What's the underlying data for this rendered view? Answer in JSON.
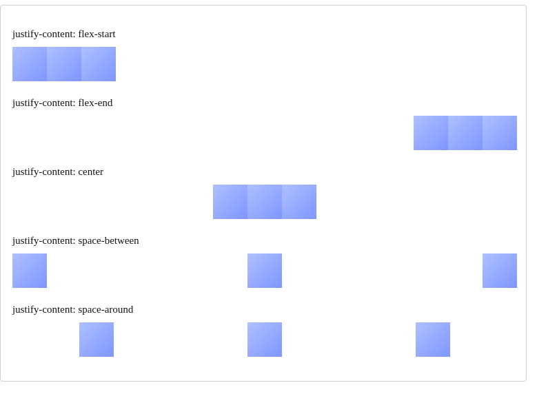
{
  "sections": [
    {
      "label": "justify-content: flex-start",
      "mode": "flex-start",
      "box_count": 3
    },
    {
      "label": "justify-content: flex-end",
      "mode": "flex-end",
      "box_count": 3
    },
    {
      "label": "justify-content: center",
      "mode": "center",
      "box_count": 3
    },
    {
      "label": "justify-content: space-between",
      "mode": "space-between",
      "box_count": 3
    },
    {
      "label": "justify-content: space-around",
      "mode": "space-around",
      "box_count": 3
    }
  ],
  "colors": {
    "box_gradient_start": "#aec0ff",
    "box_gradient_end": "#7f96ff",
    "frame_border": "#cfcfcf"
  }
}
